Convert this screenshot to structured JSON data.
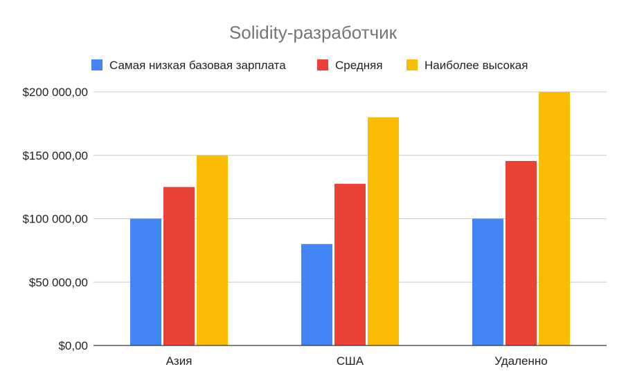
{
  "chart_data": {
    "type": "bar",
    "title": "Solidity-разработчик",
    "xlabel": "",
    "ylabel": "",
    "categories": [
      "Азия",
      "США",
      "Удаленно"
    ],
    "series": [
      {
        "name": "Самая низкая базовая зарплата",
        "color": "#4285F4",
        "values": [
          100000,
          80000,
          100000
        ]
      },
      {
        "name": "Средняя",
        "color": "#EA4335",
        "values": [
          125000,
          127500,
          145500
        ]
      },
      {
        "name": "Наиболее высокая",
        "color": "#FBBC04",
        "values": [
          150000,
          180000,
          200000
        ]
      }
    ],
    "ylim": [
      0,
      200000
    ],
    "y_ticks": [
      {
        "value": 0,
        "label": "$0,00"
      },
      {
        "value": 50000,
        "label": "$50 000,00"
      },
      {
        "value": 100000,
        "label": "$100 000,00"
      },
      {
        "value": 150000,
        "label": "$150 000,00"
      },
      {
        "value": 200000,
        "label": "$200 000,00"
      }
    ],
    "grid": true,
    "legend_position": "top"
  }
}
